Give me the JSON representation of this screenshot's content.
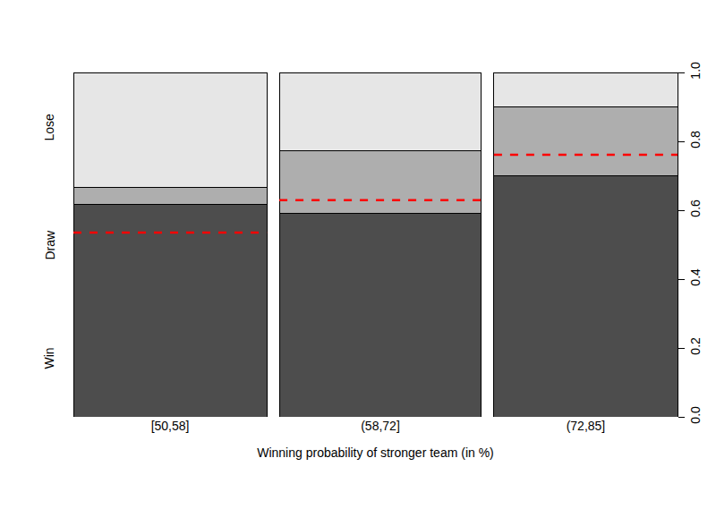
{
  "chart_data": {
    "type": "spineplot",
    "x_label": "Winning probability of stronger team (in %)",
    "categories": [
      "[50,58]",
      "(58,72]",
      "(72,85]"
    ],
    "widths": [
      0.334,
      0.349,
      0.317
    ],
    "stacked": true,
    "series": [
      {
        "name": "Win",
        "color": "#4d4d4d",
        "values": [
          0.618,
          0.59,
          0.699
        ]
      },
      {
        "name": "Draw",
        "color": "#aeaeae",
        "values": [
          0.047,
          0.184,
          0.202
        ]
      },
      {
        "name": "Lose",
        "color": "#e6e6e6",
        "values": [
          0.335,
          0.226,
          0.099
        ]
      }
    ],
    "expected": {
      "color": "#ff0000",
      "line_style": "dashed",
      "values": [
        0.535,
        0.629,
        0.761
      ]
    },
    "ylim": [
      0,
      1
    ],
    "yticks": [
      {
        "value": 0,
        "label": "0.0"
      },
      {
        "value": 0.2,
        "label": "0.2"
      },
      {
        "value": 0.4,
        "label": "0.4"
      },
      {
        "value": 0.6,
        "label": "0.6"
      },
      {
        "value": 0.8,
        "label": "0.8"
      },
      {
        "value": 1,
        "label": "1.0"
      }
    ],
    "grid": false
  }
}
